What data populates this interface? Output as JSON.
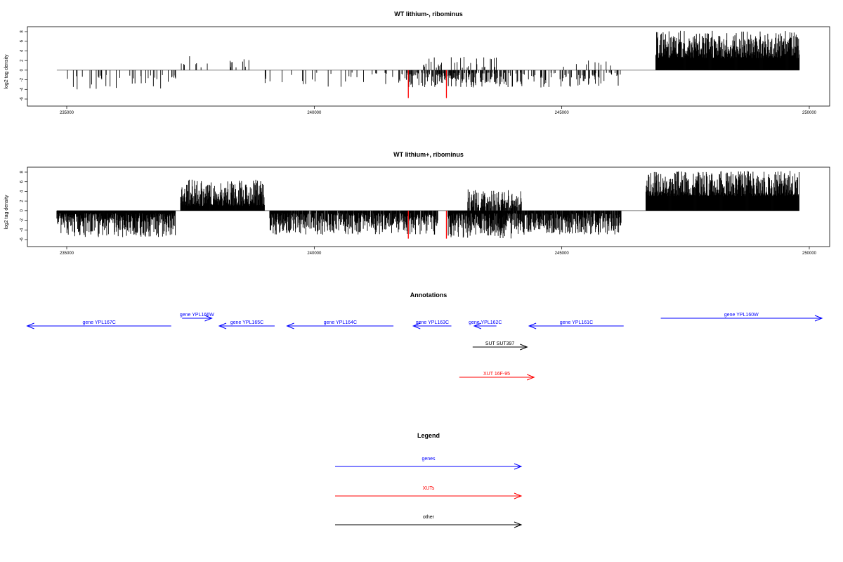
{
  "colors": {
    "genes": "#0000ff",
    "xuts": "#ff0000",
    "other": "#000000",
    "data": "#000000",
    "highlight": "#ff0000"
  },
  "chart_data": [
    {
      "type": "bar",
      "title": "WT lithium-, ribominus",
      "ylabel": "log2 tag density",
      "xlim": [
        234900,
        250000
      ],
      "ylim": [
        -6,
        8
      ],
      "x_ticks": [
        "235000",
        "240000",
        "245000",
        "250000"
      ],
      "y_ticks": [
        "8",
        "6",
        "4",
        "2",
        "0",
        "-2",
        "-4",
        "-6"
      ],
      "grid": false,
      "segments": [
        {
          "from": 235000,
          "to": 237300,
          "sign": -1,
          "density": 0.09,
          "min": 1.0,
          "max": 4.0
        },
        {
          "from": 237300,
          "to": 238900,
          "sign": 1,
          "density": 0.06,
          "min": 0.5,
          "max": 3.2
        },
        {
          "from": 239000,
          "to": 241700,
          "sign": -1,
          "density": 0.07,
          "min": 0.5,
          "max": 3.6
        },
        {
          "from": 241700,
          "to": 243900,
          "sign": -1,
          "density": 0.5,
          "min": 0.5,
          "max": 3.6
        },
        {
          "from": 242200,
          "to": 243700,
          "sign": 1,
          "density": 0.12,
          "min": 0.5,
          "max": 2.8
        },
        {
          "from": 243900,
          "to": 246200,
          "sign": -1,
          "density": 0.25,
          "min": 0.5,
          "max": 3.6
        },
        {
          "from": 245000,
          "to": 246000,
          "sign": 1,
          "density": 0.05,
          "min": 0.5,
          "max": 2.0
        },
        {
          "from": 246900,
          "to": 249800,
          "sign": 1,
          "density": 1.0,
          "min": 2.5,
          "max": 8.2
        }
      ],
      "highlights": [
        {
          "x": 241900,
          "value": -5.8
        },
        {
          "x": 242670,
          "value": -5.8
        }
      ]
    },
    {
      "type": "bar",
      "title": "WT lithium+, ribominus",
      "ylabel": "log2 tag density",
      "xlim": [
        234900,
        250000
      ],
      "ylim": [
        -6,
        8
      ],
      "x_ticks": [
        "235000",
        "240000",
        "245000",
        "250000"
      ],
      "y_ticks": [
        "8",
        "6",
        "4",
        "2",
        "0",
        "-2",
        "-4",
        "-6"
      ],
      "grid": false,
      "segments": [
        {
          "from": 234800,
          "to": 237200,
          "sign": -1,
          "density": 1.0,
          "min": 0.5,
          "max": 5.5
        },
        {
          "from": 237300,
          "to": 239000,
          "sign": 1,
          "density": 1.0,
          "min": 1.0,
          "max": 6.5
        },
        {
          "from": 239100,
          "to": 242500,
          "sign": -1,
          "density": 0.9,
          "min": 0.5,
          "max": 5.0
        },
        {
          "from": 242700,
          "to": 244000,
          "sign": -1,
          "density": 1.0,
          "min": 0.5,
          "max": 5.8
        },
        {
          "from": 243100,
          "to": 244200,
          "sign": 1,
          "density": 0.7,
          "min": 0.5,
          "max": 4.8
        },
        {
          "from": 244000,
          "to": 246200,
          "sign": -1,
          "density": 0.9,
          "min": 0.5,
          "max": 5.0
        },
        {
          "from": 246700,
          "to": 249800,
          "sign": 1,
          "density": 1.0,
          "min": 3.0,
          "max": 8.3
        }
      ],
      "highlights": [
        {
          "x": 241900,
          "value": -5.8
        },
        {
          "x": 242670,
          "value": -5.8
        }
      ]
    }
  ],
  "annotations": {
    "title": "Annotations",
    "xlim": [
      234900,
      250000
    ],
    "items": [
      {
        "label": "gene YPL167C",
        "start": 234200,
        "end": 237110,
        "strand": "-",
        "row": 1,
        "kind": "genes"
      },
      {
        "label": "gene YPL166W",
        "start": 237330,
        "end": 237930,
        "strand": "+",
        "row": 0,
        "kind": "genes"
      },
      {
        "label": "gene YPL165C",
        "start": 238080,
        "end": 239200,
        "strand": "-",
        "row": 1,
        "kind": "genes"
      },
      {
        "label": "gene YPL164C",
        "start": 239450,
        "end": 241600,
        "strand": "-",
        "row": 1,
        "kind": "genes"
      },
      {
        "label": "gene YPL163C",
        "start": 242000,
        "end": 242770,
        "strand": "-",
        "row": 1,
        "kind": "genes"
      },
      {
        "label": "gene YPL162C",
        "start": 243230,
        "end": 243680,
        "strand": "-",
        "row": 1,
        "kind": "genes"
      },
      {
        "label": "gene YPL161C",
        "start": 244340,
        "end": 246250,
        "strand": "-",
        "row": 1,
        "kind": "genes"
      },
      {
        "label": "gene YPL160W",
        "start": 247000,
        "end": 250300,
        "strand": "+",
        "row": 0,
        "kind": "genes"
      },
      {
        "label": "SUT SUT397",
        "start": 243200,
        "end": 244300,
        "strand": "+",
        "row": 2,
        "kind": "other"
      },
      {
        "label": "XUT 16F-95",
        "start": 242930,
        "end": 244440,
        "strand": "+",
        "row": 3,
        "kind": "xuts"
      }
    ]
  },
  "legend": {
    "title": "Legend",
    "items": [
      {
        "label": "genes",
        "kind": "genes"
      },
      {
        "label": "XUTs",
        "kind": "xuts"
      },
      {
        "label": "other",
        "kind": "other"
      }
    ]
  }
}
